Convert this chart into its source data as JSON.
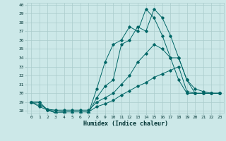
{
  "xlabel": "Humidex (Indice chaleur)",
  "background_color": "#cce8e8",
  "grid_color": "#aacccc",
  "line_color": "#006666",
  "xlim": [
    -0.5,
    23.5
  ],
  "ylim": [
    27.8,
    40.2
  ],
  "yticks": [
    28,
    29,
    30,
    31,
    32,
    33,
    34,
    35,
    36,
    37,
    38,
    39,
    40
  ],
  "xticks": [
    0,
    1,
    2,
    3,
    4,
    5,
    6,
    7,
    8,
    9,
    10,
    11,
    12,
    13,
    14,
    15,
    16,
    17,
    18,
    19,
    20,
    21,
    22,
    23
  ],
  "lines": [
    {
      "x": [
        0,
        1,
        2,
        3,
        4,
        5,
        6,
        7,
        8,
        9,
        10,
        11,
        12,
        13,
        14,
        15,
        16,
        17,
        18,
        19,
        20,
        21,
        22,
        23
      ],
      "y": [
        29,
        29,
        28.1,
        27.8,
        27.8,
        27.7,
        27.7,
        27.8,
        30.5,
        33.5,
        35.5,
        36,
        37.5,
        37,
        39.5,
        38.5,
        36.5,
        34,
        31.5,
        30,
        30,
        30,
        30,
        30
      ]
    },
    {
      "x": [
        0,
        1,
        2,
        3,
        4,
        5,
        6,
        7,
        8,
        9,
        10,
        11,
        12,
        13,
        14,
        15,
        16,
        17,
        18,
        19,
        20,
        21,
        22,
        23
      ],
      "y": [
        29,
        29,
        28.1,
        27.8,
        27.8,
        27.7,
        27.7,
        27.8,
        29.5,
        30.8,
        31.5,
        35.5,
        36,
        37.5,
        37,
        39.5,
        38.5,
        36.5,
        34,
        31.5,
        30,
        30,
        30,
        30
      ]
    },
    {
      "x": [
        0,
        1,
        2,
        3,
        4,
        5,
        6,
        7,
        8,
        9,
        10,
        11,
        12,
        13,
        14,
        15,
        16,
        17,
        18,
        19,
        20,
        21,
        22,
        23
      ],
      "y": [
        29,
        28.7,
        28.2,
        28.1,
        28.1,
        28.1,
        28.1,
        28.1,
        29.0,
        29.5,
        30.0,
        31.0,
        32.0,
        33.5,
        34.5,
        35.5,
        35.0,
        34.0,
        34.0,
        31.5,
        30.5,
        30.2,
        30.0,
        30.0
      ]
    },
    {
      "x": [
        0,
        1,
        2,
        3,
        4,
        5,
        6,
        7,
        8,
        9,
        10,
        11,
        12,
        13,
        14,
        15,
        16,
        17,
        18,
        19,
        20,
        21,
        22,
        23
      ],
      "y": [
        29,
        28.5,
        28.1,
        28.0,
        27.9,
        27.9,
        27.9,
        27.9,
        28.5,
        28.8,
        29.2,
        29.8,
        30.3,
        30.8,
        31.2,
        31.8,
        32.2,
        32.6,
        33.0,
        30.2,
        30.0,
        30.0,
        30.0,
        30.0
      ]
    }
  ]
}
